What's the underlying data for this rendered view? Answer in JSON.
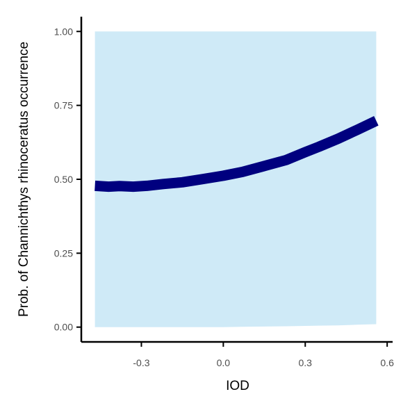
{
  "chart_data": {
    "type": "line",
    "xlabel": "IOD",
    "ylabel": "Prob. of  Channichthys rhinoceratus  occurrence",
    "xlim": [
      -0.52,
      0.62
    ],
    "ylim": [
      -0.05,
      1.05
    ],
    "xticks": [
      -0.3,
      0.0,
      0.3,
      0.6
    ],
    "xtick_labels": [
      "-0.3",
      "0.0",
      "0.3",
      "0.6"
    ],
    "yticks": [
      0.0,
      0.25,
      0.5,
      0.75,
      1.0
    ],
    "ytick_labels": [
      "0.00",
      "0.25",
      "0.50",
      "0.75",
      "1.00"
    ],
    "grid": false,
    "series": [
      {
        "x": [
          -0.47,
          -0.42,
          -0.38,
          -0.33,
          -0.28,
          -0.22,
          -0.15,
          -0.08,
          0.0,
          0.07,
          0.15,
          0.23,
          0.3,
          0.35,
          0.42,
          0.49,
          0.56
        ],
        "values": [
          0.478,
          0.475,
          0.477,
          0.475,
          0.478,
          0.484,
          0.49,
          0.5,
          0.512,
          0.525,
          0.545,
          0.565,
          0.592,
          0.61,
          0.637,
          0.667,
          0.698
        ],
        "lower": [
          0.0,
          0.0,
          0.0,
          0.0,
          0.0,
          0.0,
          0.0,
          0.0,
          0.0,
          0.001,
          0.002,
          0.003,
          0.004,
          0.005,
          0.006,
          0.008,
          0.01
        ],
        "upper": [
          1.0,
          1.0,
          1.0,
          1.0,
          1.0,
          1.0,
          1.0,
          1.0,
          1.0,
          1.0,
          1.0,
          1.0,
          1.0,
          1.0,
          1.0,
          1.0,
          1.0
        ]
      }
    ],
    "colors": {
      "line": "#00007f",
      "ribbon": "#cfeaf7",
      "axis": "#000000",
      "tick_text": "#4d4d4d"
    }
  }
}
